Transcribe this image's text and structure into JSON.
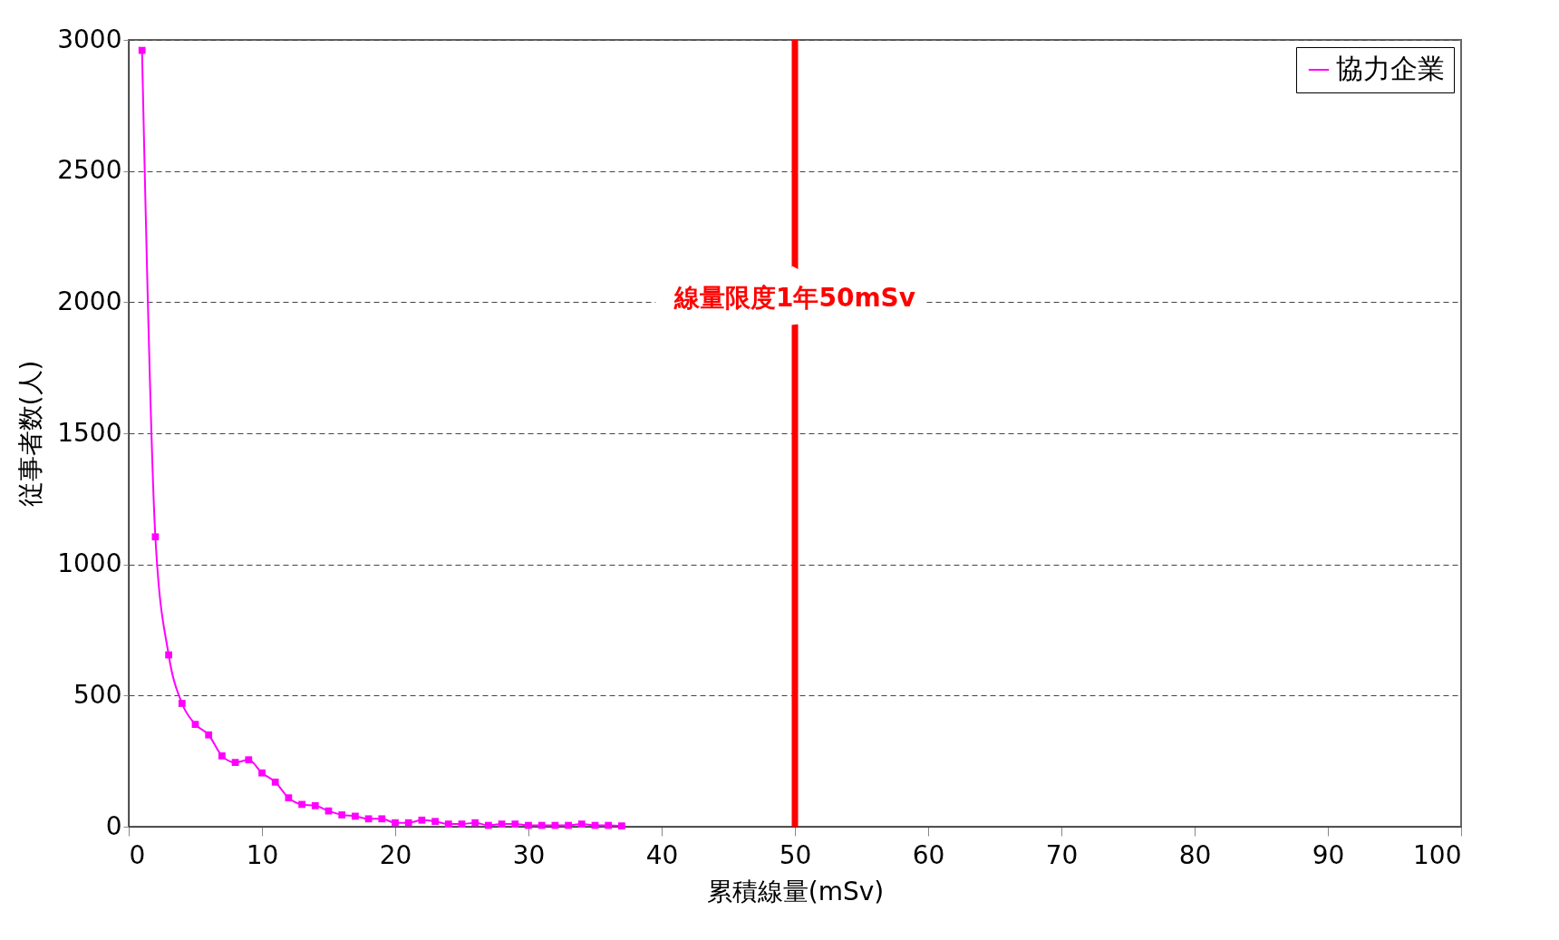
{
  "chart_data": {
    "type": "line",
    "xlabel": "累積線量(mSv)",
    "ylabel": "従事者数(人)",
    "x": [
      1,
      2,
      3,
      4,
      5,
      6,
      7,
      8,
      9,
      10,
      11,
      12,
      13,
      14,
      15,
      16,
      17,
      18,
      19,
      20,
      21,
      22,
      23,
      24,
      25,
      26,
      27,
      28,
      29,
      30,
      31,
      32,
      33,
      34,
      35,
      36,
      37
    ],
    "series": [
      {
        "name": "協力企業",
        "color": "#ff00ff",
        "values": [
          2960,
          1105,
          655,
          470,
          390,
          350,
          270,
          245,
          255,
          205,
          170,
          110,
          85,
          80,
          60,
          45,
          40,
          30,
          30,
          15,
          15,
          25,
          20,
          10,
          10,
          15,
          5,
          10,
          10,
          5,
          5,
          5,
          5,
          10,
          5,
          5,
          3
        ]
      }
    ],
    "xlim": [
      0,
      100
    ],
    "xticks": [
      0,
      10,
      20,
      30,
      40,
      50,
      60,
      70,
      80,
      90,
      100
    ],
    "ylim": [
      0,
      3000
    ],
    "yticks": [
      0,
      500,
      1000,
      1500,
      2000,
      2500,
      3000
    ],
    "grid": "y",
    "legend": "top right",
    "marker": "square",
    "line_style": "solid",
    "ref_lines": [
      {
        "axis": "x",
        "value": 50,
        "label": "線量限度1年50mSv",
        "color": "#ff0000"
      }
    ]
  }
}
